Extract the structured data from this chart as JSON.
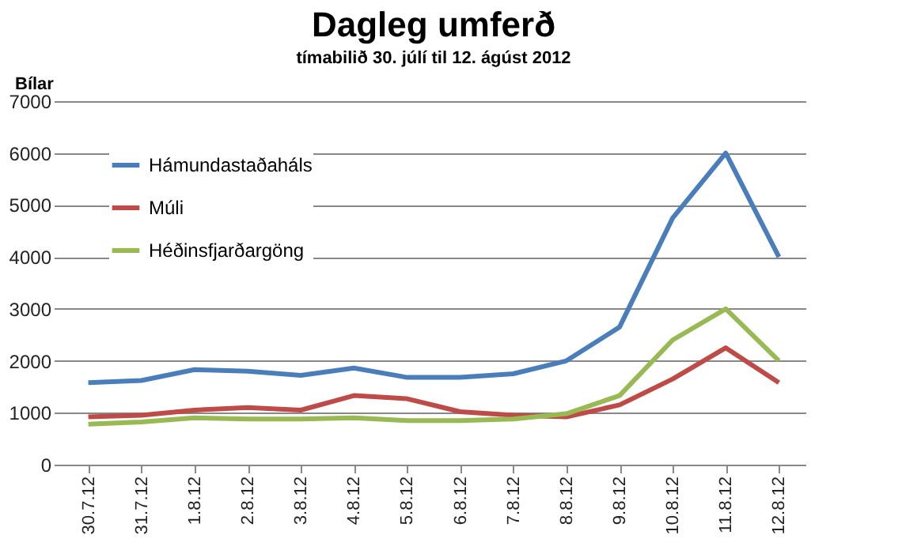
{
  "chart_data": {
    "type": "line",
    "title": "Dagleg umferð",
    "subtitle": "tímabilið 30. júlí til 12. ágúst 2012",
    "ylabel": "Bílar",
    "categories": [
      "30.7.12",
      "31.7.12",
      "1.8.12",
      "2.8.12",
      "3.8.12",
      "4.8.12",
      "5.8.12",
      "6.8.12",
      "7.8.12",
      "8.8.12",
      "9.8.12",
      "10.8.12",
      "11.8.12",
      "12.8.12"
    ],
    "series": [
      {
        "name": "Hámundastaðaháls",
        "color": "#4a7ebb",
        "values": [
          1580,
          1620,
          1830,
          1800,
          1720,
          1860,
          1680,
          1680,
          1750,
          2000,
          2650,
          4750,
          6000,
          4000
        ]
      },
      {
        "name": "Múli",
        "color": "#be4b48",
        "values": [
          920,
          950,
          1050,
          1100,
          1050,
          1330,
          1270,
          1020,
          950,
          920,
          1150,
          1650,
          2250,
          1580
        ]
      },
      {
        "name": "Héðinsfjarðargöng",
        "color": "#98b954",
        "values": [
          780,
          820,
          900,
          880,
          880,
          900,
          850,
          850,
          880,
          980,
          1330,
          2400,
          3000,
          2000
        ]
      }
    ],
    "ylim": [
      0,
      7000
    ],
    "yticks": [
      0,
      1000,
      2000,
      3000,
      4000,
      5000,
      6000,
      7000
    ],
    "grid": "y",
    "legend": "top left",
    "line_style": "solid",
    "marker": "none"
  }
}
